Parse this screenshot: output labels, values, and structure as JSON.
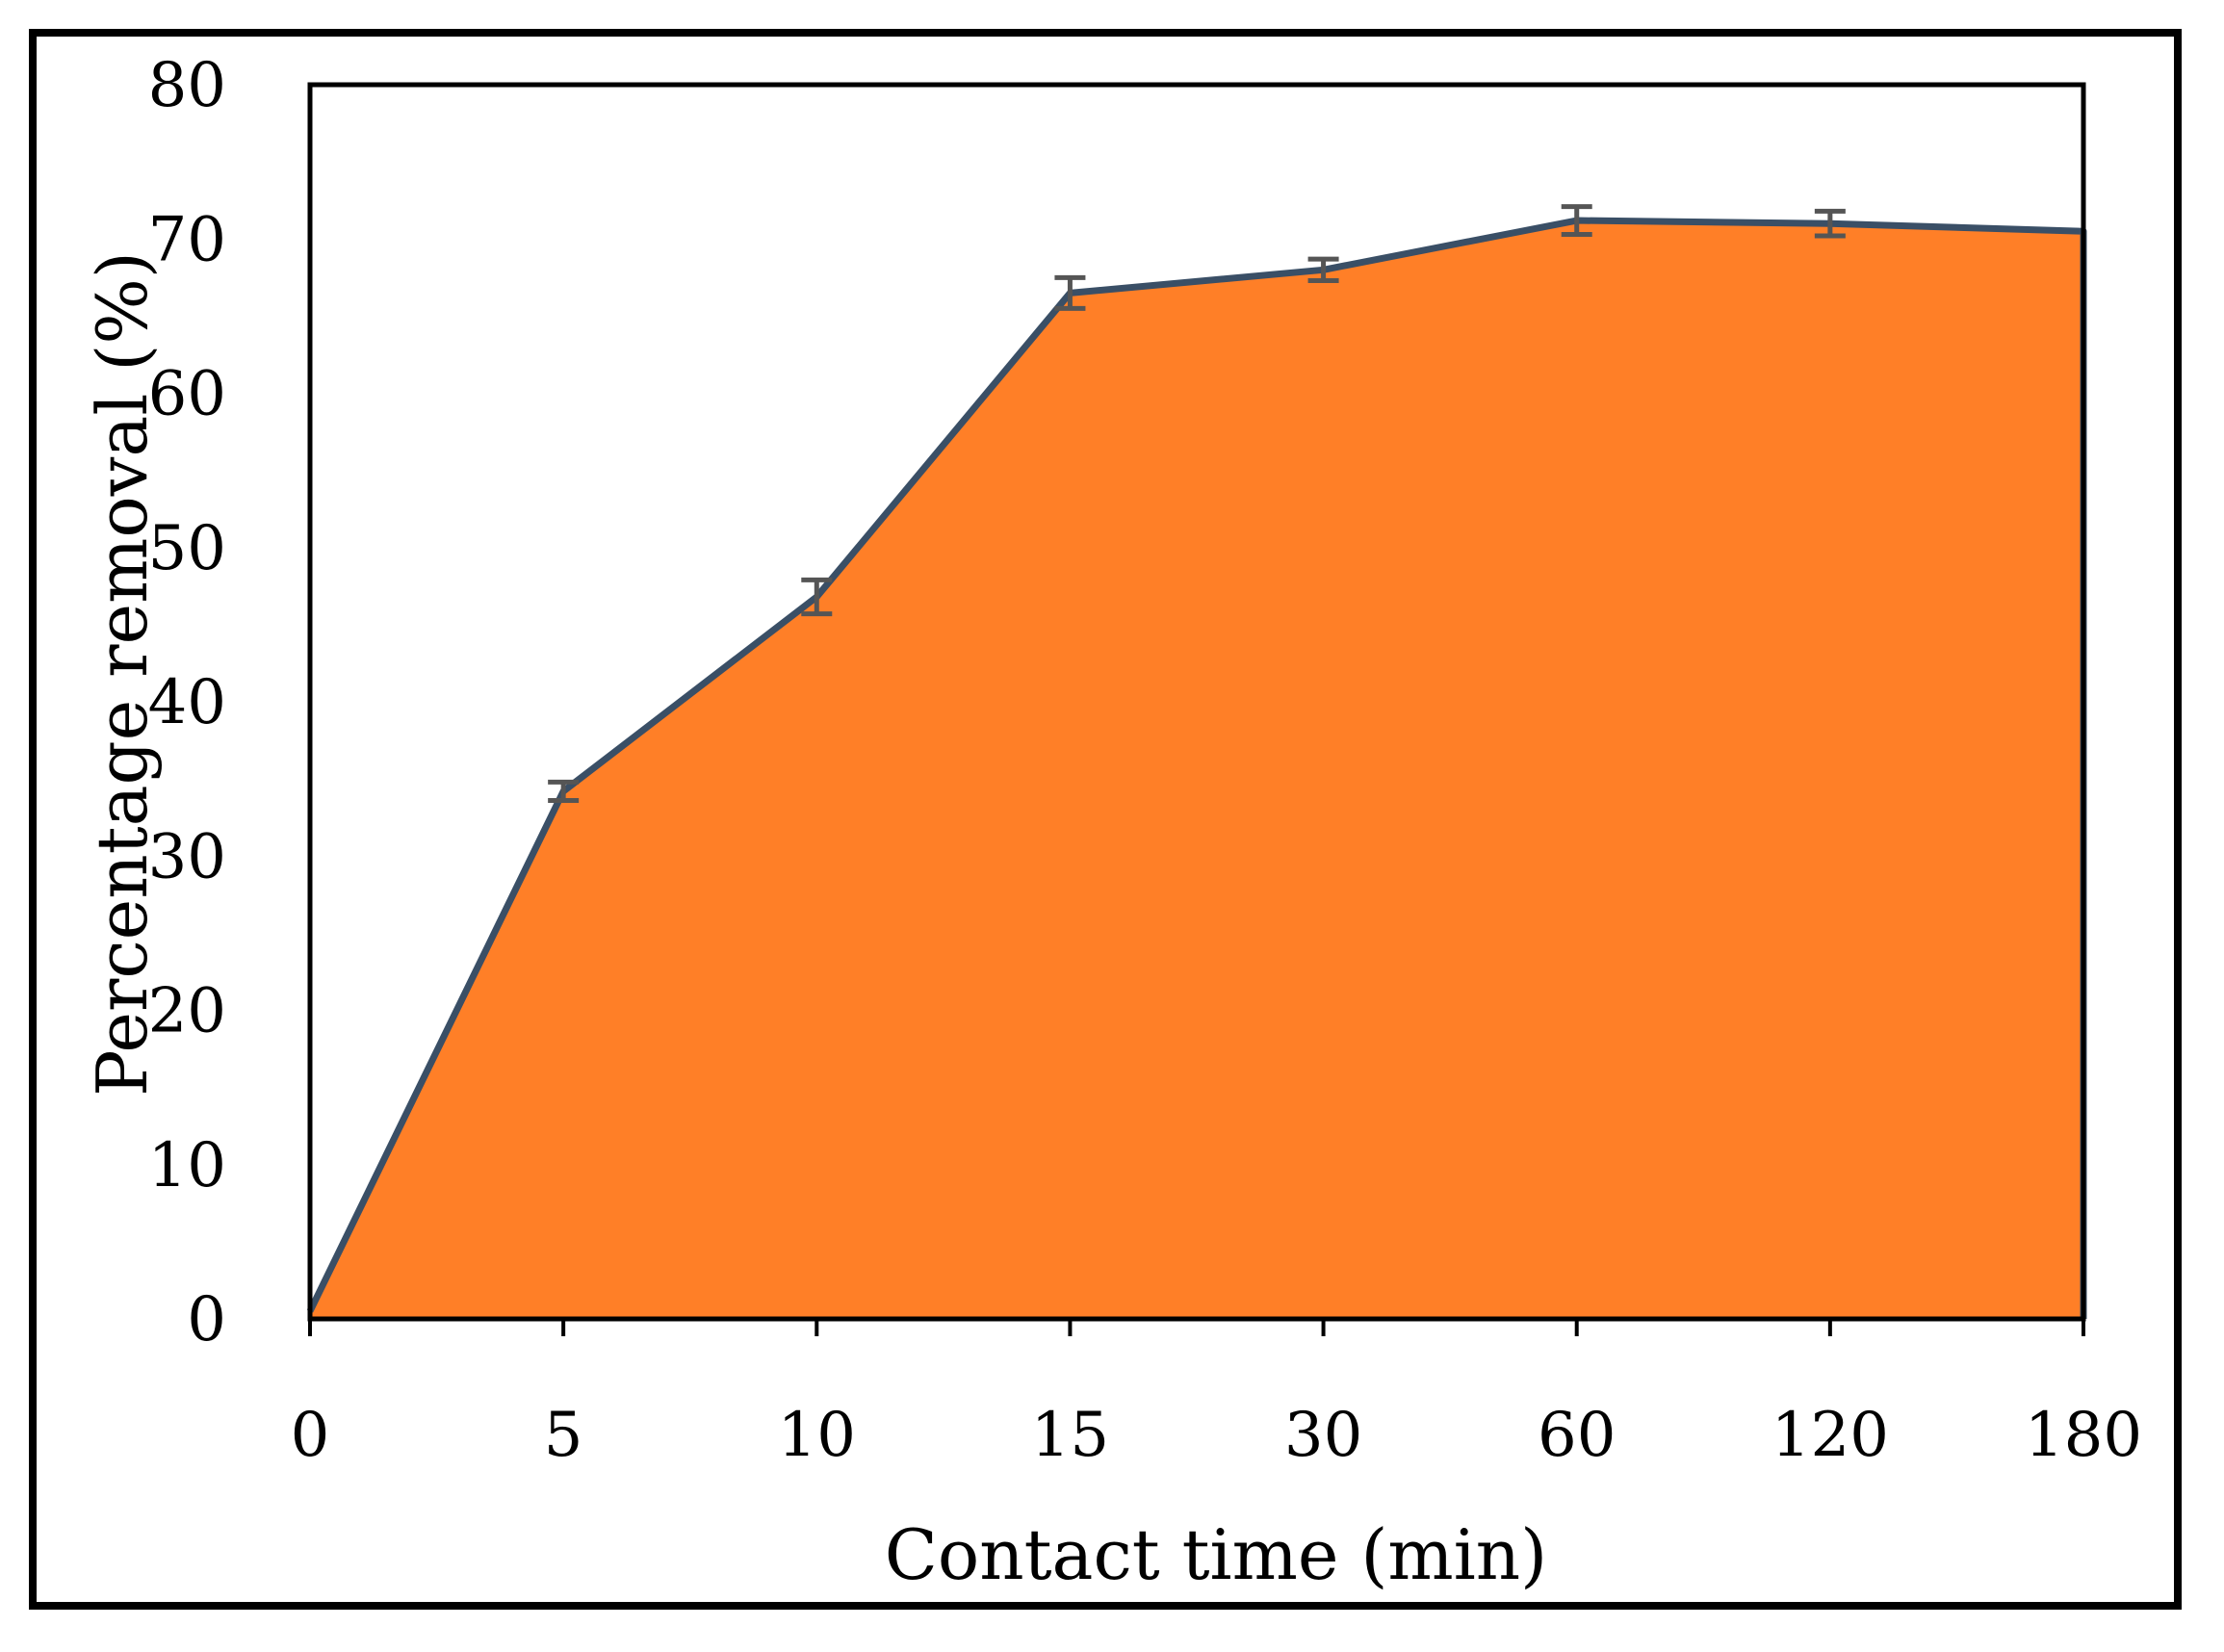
{
  "chart_data": {
    "type": "area",
    "title": "",
    "xlabel": "Contact time (min)",
    "ylabel": "Percentage removal (%)",
    "categories": [
      "0",
      "5",
      "10",
      "15",
      "30",
      "60",
      "120",
      "180"
    ],
    "series": [
      {
        "values": [
          0.5,
          34.2,
          46.8,
          66.5,
          68.0,
          71.2,
          71.0,
          70.5
        ],
        "errors": [
          0,
          0.6,
          1.1,
          1.0,
          0.7,
          0.9,
          0.8,
          0
        ]
      }
    ],
    "ylim": [
      0,
      80
    ],
    "yticks": [
      "0",
      "10",
      "20",
      "30",
      "40",
      "50",
      "60",
      "70",
      "80"
    ],
    "grid": false,
    "legend": "none",
    "colors": {
      "fill": "#FF7F27",
      "line": "#3A4F66",
      "error_bar": "#555555",
      "axis": "#000000"
    }
  }
}
